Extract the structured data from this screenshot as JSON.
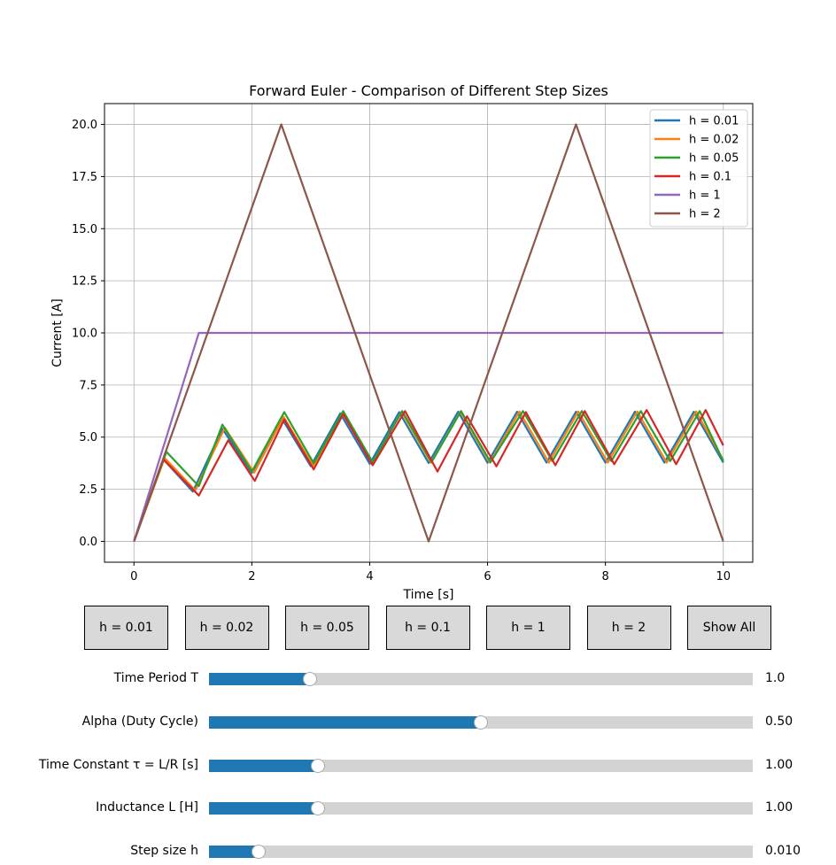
{
  "chart_data": {
    "type": "line",
    "title": "Forward Euler - Comparison of Different Step Sizes",
    "xlabel": "Time [s]",
    "ylabel": "Current [A]",
    "xlim": [
      -0.5,
      10.5
    ],
    "ylim": [
      -1.0,
      21.0
    ],
    "xticks": [
      0,
      2,
      4,
      6,
      8,
      10
    ],
    "xtick_labels": [
      "0",
      "2",
      "4",
      "6",
      "8",
      "10"
    ],
    "yticks": [
      0,
      2.5,
      5,
      7.5,
      10,
      12.5,
      15,
      17.5,
      20
    ],
    "ytick_labels": [
      "0.0",
      "2.5",
      "5.0",
      "7.5",
      "10.0",
      "12.5",
      "15.0",
      "17.5",
      "20.0"
    ],
    "grid": true,
    "legend_position": "top-right",
    "series": [
      {
        "name": "h = 0.01",
        "color": "#1f77b4",
        "x": [
          0,
          0.5,
          1.0,
          1.5,
          2.0,
          2.5,
          3.0,
          3.5,
          4.0,
          4.5,
          5.0,
          5.5,
          6.0,
          6.5,
          7.0,
          7.5,
          8.0,
          8.5,
          9.0,
          9.5,
          10.0
        ],
        "y": [
          0,
          3.93,
          2.39,
          5.4,
          3.28,
          5.94,
          3.61,
          6.14,
          3.72,
          6.2,
          3.76,
          6.22,
          3.77,
          6.22,
          3.78,
          6.22,
          3.78,
          6.22,
          3.78,
          6.22,
          3.78
        ]
      },
      {
        "name": "h = 0.02",
        "color": "#ff7f0e",
        "x": [
          0,
          0.52,
          1.04,
          1.54,
          2.04,
          2.54,
          3.04,
          3.54,
          4.04,
          4.54,
          5.04,
          5.54,
          6.04,
          6.54,
          7.04,
          7.54,
          8.04,
          8.54,
          9.04,
          9.54,
          10.0
        ],
        "y": [
          0,
          4.0,
          2.45,
          5.45,
          3.3,
          5.97,
          3.62,
          6.16,
          3.73,
          6.21,
          3.77,
          6.23,
          3.78,
          6.23,
          3.78,
          6.23,
          3.78,
          6.23,
          3.78,
          6.23,
          3.9
        ]
      },
      {
        "name": "h = 0.05",
        "color": "#2ca02c",
        "x": [
          0,
          0.55,
          1.1,
          1.5,
          2.0,
          2.55,
          3.05,
          3.55,
          4.05,
          4.55,
          5.05,
          5.55,
          6.05,
          6.6,
          7.1,
          7.6,
          8.1,
          8.6,
          9.1,
          9.6,
          10.0
        ],
        "y": [
          0,
          4.3,
          2.65,
          5.6,
          3.35,
          6.2,
          3.75,
          6.25,
          3.8,
          6.25,
          3.8,
          6.25,
          3.8,
          6.25,
          3.85,
          6.25,
          3.85,
          6.25,
          3.85,
          6.25,
          3.85
        ]
      },
      {
        "name": "h = 0.1",
        "color": "#d62728",
        "x": [
          0,
          0.5,
          1.1,
          1.6,
          2.05,
          2.55,
          3.05,
          3.55,
          4.05,
          4.6,
          5.15,
          5.65,
          6.15,
          6.65,
          7.15,
          7.65,
          8.15,
          8.7,
          9.2,
          9.7,
          10.0
        ],
        "y": [
          0,
          3.93,
          2.2,
          4.85,
          2.9,
          5.85,
          3.45,
          6.1,
          3.65,
          6.25,
          3.35,
          6.0,
          3.6,
          6.2,
          3.65,
          6.25,
          3.7,
          6.3,
          3.7,
          6.3,
          4.6
        ]
      },
      {
        "name": "h = 1",
        "color": "#9467bd",
        "x": [
          0,
          1.1,
          10
        ],
        "y": [
          0,
          10,
          10
        ]
      },
      {
        "name": "h = 2",
        "color": "#8c564b",
        "x": [
          0,
          2.5,
          5,
          7.5,
          10
        ],
        "y": [
          0,
          20,
          0,
          20,
          0
        ]
      }
    ]
  },
  "buttons": [
    {
      "label": "h = 0.01",
      "name": "h-001-button"
    },
    {
      "label": "h = 0.02",
      "name": "h-002-button"
    },
    {
      "label": "h = 0.05",
      "name": "h-005-button"
    },
    {
      "label": "h = 0.1",
      "name": "h-01-button"
    },
    {
      "label": "h = 1",
      "name": "h-1-button"
    },
    {
      "label": "h = 2",
      "name": "h-2-button"
    },
    {
      "label": "Show All",
      "name": "show-all-button"
    }
  ],
  "sliders": [
    {
      "label": "Time Period T",
      "value_text": "1.0",
      "fraction": 0.185,
      "name": "time-period-slider"
    },
    {
      "label": "Alpha (Duty Cycle)",
      "value_text": "0.50",
      "fraction": 0.5,
      "name": "alpha-slider"
    },
    {
      "label": "Time Constant τ = L/R [s]",
      "value_text": "1.00",
      "fraction": 0.2,
      "name": "time-constant-slider"
    },
    {
      "label": "Inductance L [H]",
      "value_text": "1.00",
      "fraction": 0.2,
      "name": "inductance-slider"
    },
    {
      "label": "Step size h",
      "value_text": "0.010",
      "fraction": 0.092,
      "name": "step-size-slider"
    }
  ]
}
